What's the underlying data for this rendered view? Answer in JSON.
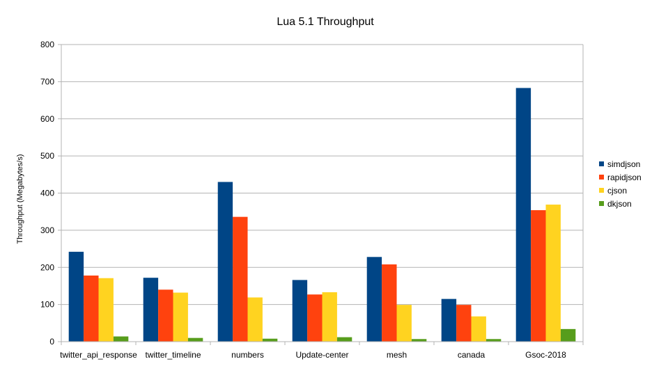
{
  "chart_data": {
    "type": "bar",
    "title": "Lua 5.1 Throughput",
    "ylabel": "Throughput (Megabytes/s)",
    "xlabel": "",
    "ylim": [
      0,
      800
    ],
    "yticks": [
      0,
      100,
      200,
      300,
      400,
      500,
      600,
      700,
      800
    ],
    "grid": true,
    "legend_position": "right",
    "categories": [
      "twitter_api_response",
      "twitter_timeline",
      "numbers",
      "Update-center",
      "mesh",
      "canada",
      "Gsoc-2018"
    ],
    "series": [
      {
        "name": "simdjson",
        "color": "#004586",
        "values": [
          242,
          172,
          430,
          166,
          228,
          115,
          683
        ]
      },
      {
        "name": "rapidjson",
        "color": "#ff420e",
        "values": [
          178,
          140,
          336,
          127,
          208,
          99,
          354
        ]
      },
      {
        "name": "cjson",
        "color": "#ffd320",
        "values": [
          171,
          132,
          119,
          133,
          99,
          68,
          369
        ]
      },
      {
        "name": "dkjson",
        "color": "#579d1c",
        "values": [
          14,
          10,
          8,
          12,
          7,
          7,
          34
        ]
      }
    ]
  }
}
